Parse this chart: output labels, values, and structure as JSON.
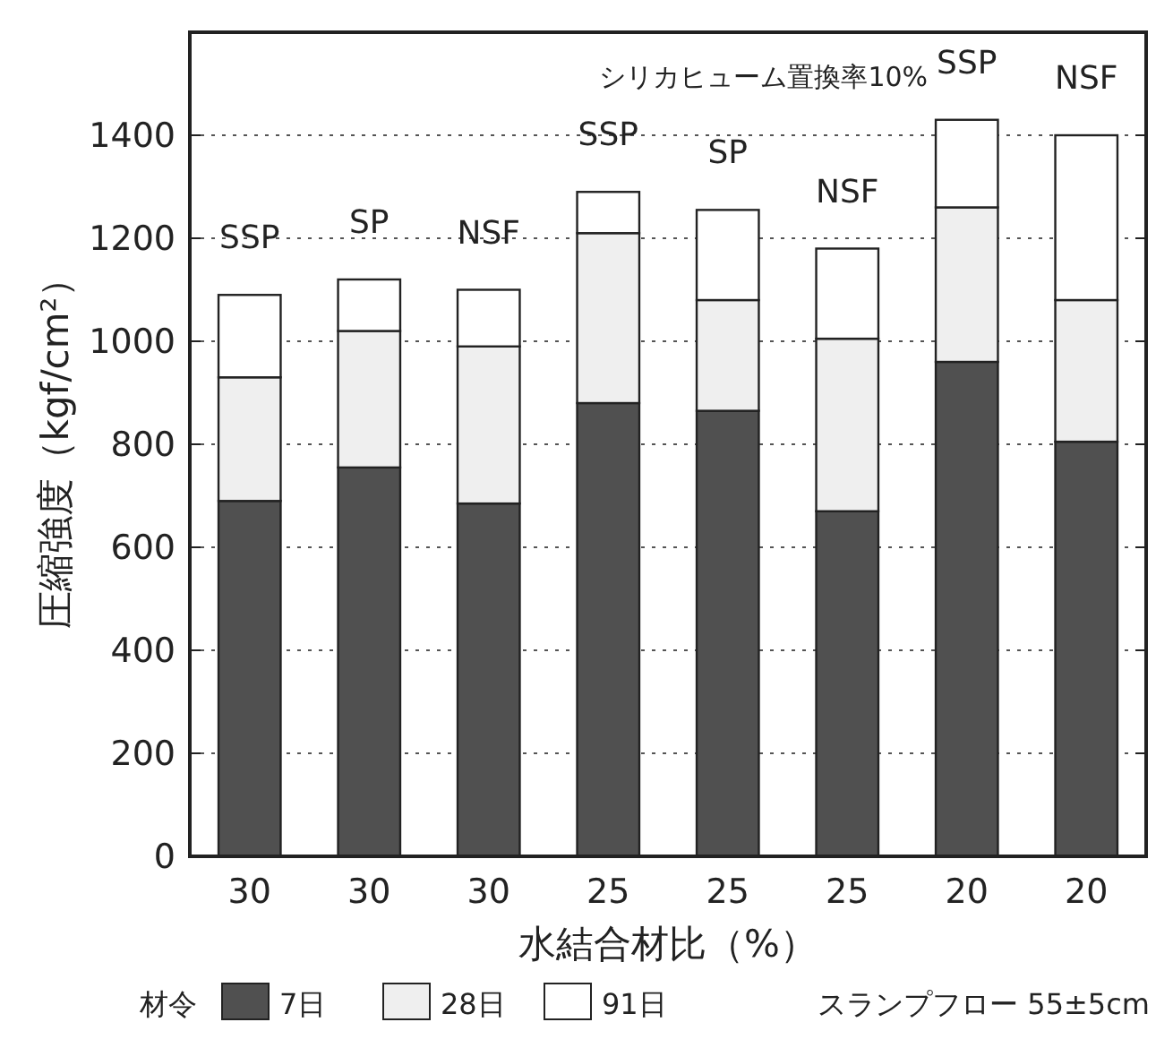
{
  "chart_data": {
    "type": "bar",
    "stacked": true,
    "ylabel": "圧縮強度（kgf/cm²）",
    "xlabel": "水結合材比（%）",
    "legend_title": "材令",
    "legend": "bottom",
    "grid": "y",
    "categories": [
      "30",
      "30",
      "30",
      "25",
      "25",
      "25",
      "20",
      "20"
    ],
    "series": [
      {
        "name": "7日",
        "color": "#505050",
        "values": [
          690,
          755,
          685,
          880,
          865,
          670,
          960,
          805
        ]
      },
      {
        "name": "28日",
        "color": "#efefef",
        "values": [
          240,
          265,
          305,
          330,
          215,
          335,
          300,
          275
        ]
      },
      {
        "name": "91日",
        "color": "#ffffff",
        "values": [
          160,
          100,
          110,
          80,
          175,
          175,
          170,
          320
        ]
      }
    ],
    "ylim": [
      0,
      1600
    ],
    "yticks": [
      0,
      200,
      400,
      600,
      800,
      1000,
      1200,
      1400
    ],
    "annotations": [
      "シリカヒューム置換率10%",
      "スランプフロー 55±5cm",
      "SSP",
      "SP",
      "NSF",
      "SSP",
      "SP",
      "NSF",
      "SSP",
      "NSF"
    ]
  }
}
